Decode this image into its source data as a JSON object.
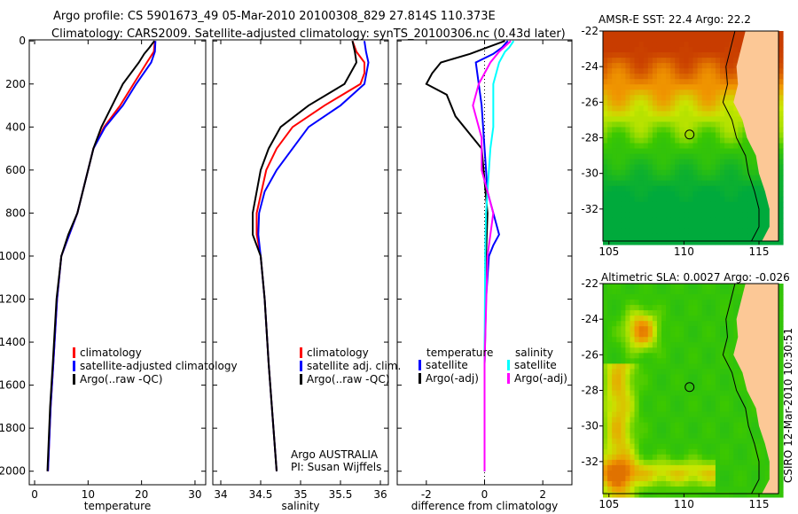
{
  "title": {
    "line1": "Argo profile: CS 5901673_49 05-Mar-2010 20100308_829 27.814S 110.373E",
    "line2": "Climatology: CARS2009. Satellite-adjusted climatology: synTS_20100306.nc (0.43d later)"
  },
  "credit": "CSIRO 12-Mar-2010 10:30:51",
  "colors": {
    "climatology": "#ff0000",
    "satellite": "#0000ff",
    "argo": "#000000",
    "sal_satellite": "#00ffff",
    "sal_argo": "#ff00ff",
    "land": "#fcc896"
  },
  "chart_data": [
    {
      "type": "line",
      "xlabel": "temperature",
      "xlim": [
        -1,
        32
      ],
      "ylim": [
        2063,
        -5
      ],
      "xticks": [
        "0",
        "10",
        "20",
        "30"
      ],
      "xtick_values": [
        0,
        10,
        20,
        30
      ],
      "yticks": [
        "0",
        "200",
        "400",
        "600",
        "800",
        "1000",
        "1200",
        "1400",
        "1600",
        "1800",
        "2000"
      ],
      "ytick_values": [
        0,
        200,
        400,
        600,
        800,
        1000,
        1200,
        1400,
        1600,
        1800,
        2000
      ],
      "legend": [
        "climatology",
        "satellite-adjusted climatology",
        "Argo(..raw -QC)"
      ],
      "series": [
        {
          "name": "climatology",
          "color": "#ff0000",
          "depth": [
            0,
            50,
            100,
            200,
            300,
            400,
            500,
            600,
            800,
            900,
            1000,
            1200,
            1500,
            1700,
            2000
          ],
          "values": [
            22.5,
            22.3,
            21,
            18.5,
            16,
            13,
            11,
            10,
            8,
            6.5,
            5,
            4.2,
            3.5,
            3,
            2.5
          ]
        },
        {
          "name": "satellite-adjusted climatology",
          "color": "#0000ff",
          "depth": [
            0,
            50,
            100,
            200,
            300,
            400,
            500,
            600,
            800,
            900,
            1000,
            1200,
            1500,
            1700,
            2000
          ],
          "values": [
            22.6,
            22.5,
            21.8,
            19,
            16.5,
            13.2,
            11,
            10,
            8,
            6.5,
            5,
            4.2,
            3.5,
            3,
            2.5
          ]
        },
        {
          "name": "Argo(..raw -QC)",
          "color": "#000000",
          "depth": [
            0,
            30,
            60,
            100,
            200,
            300,
            400,
            500,
            600,
            800,
            900,
            1000,
            1200,
            1500,
            1700,
            2000
          ],
          "values": [
            22.4,
            21.5,
            20.5,
            19.5,
            16.5,
            14.5,
            12.5,
            11,
            10,
            8,
            6.3,
            5,
            4.1,
            3.4,
            2.9,
            2.4
          ]
        }
      ]
    },
    {
      "type": "line",
      "xlabel": "salinity",
      "xlim": [
        33.9,
        36.1
      ],
      "ylim": [
        2063,
        -5
      ],
      "xticks": [
        "34",
        "34.5",
        "35",
        "35.5",
        "36"
      ],
      "xtick_values": [
        34,
        34.5,
        35,
        35.5,
        36
      ],
      "legend": [
        "climatology",
        "satellite adj. clim.",
        "Argo(..raw -QC)"
      ],
      "annotation": [
        "Argo AUSTRALIA",
        "PI: Susan Wijffels"
      ],
      "series": [
        {
          "name": "climatology",
          "color": "#ff0000",
          "depth": [
            0,
            50,
            100,
            150,
            200,
            300,
            400,
            500,
            600,
            800,
            900,
            1000,
            1200,
            1500,
            2000
          ],
          "values": [
            35.65,
            35.7,
            35.8,
            35.8,
            35.75,
            35.3,
            34.9,
            34.7,
            34.57,
            34.45,
            34.45,
            34.5,
            34.55,
            34.6,
            34.7
          ]
        },
        {
          "name": "satellite adj. clim.",
          "color": "#0000ff",
          "depth": [
            0,
            50,
            100,
            200,
            300,
            400,
            500,
            600,
            700,
            800,
            900,
            1000,
            1200,
            1500,
            2000
          ],
          "values": [
            35.8,
            35.82,
            35.85,
            35.8,
            35.5,
            35.1,
            34.9,
            34.7,
            34.55,
            34.48,
            34.47,
            34.5,
            34.55,
            34.6,
            34.7
          ]
        },
        {
          "name": "Argo(..raw -QC)",
          "color": "#000000",
          "depth": [
            0,
            50,
            100,
            200,
            300,
            400,
            500,
            600,
            800,
            900,
            1000,
            1200,
            1500,
            2000
          ],
          "values": [
            35.65,
            35.68,
            35.7,
            35.55,
            35.1,
            34.75,
            34.6,
            34.5,
            34.4,
            34.4,
            34.5,
            34.55,
            34.6,
            34.7
          ]
        }
      ]
    },
    {
      "type": "line",
      "xlabel": "difference from climatology",
      "xlim": [
        -3,
        3
      ],
      "ylim": [
        2063,
        -5
      ],
      "xticks": [
        "-2",
        "0",
        "2"
      ],
      "xtick_values": [
        -2,
        0,
        2
      ],
      "legend_headers": [
        "temperature",
        "salinity"
      ],
      "legend": [
        "satellite",
        "Argo(-adj)",
        "satellite",
        "Argo(-adj)"
      ],
      "series": [
        {
          "name": "temperature satellite",
          "color": "#0000ff",
          "depth": [
            0,
            30,
            60,
            100,
            200,
            300,
            500,
            700,
            850,
            900,
            950,
            1000,
            1200,
            1500,
            2000
          ],
          "values": [
            0.8,
            0.6,
            0.3,
            -0.3,
            -0.2,
            -0.1,
            0,
            0.1,
            0.4,
            0.5,
            0.3,
            0.15,
            0.05,
            0,
            0
          ]
        },
        {
          "name": "temperature Argo(-adj)",
          "color": "#000000",
          "depth": [
            0,
            30,
            60,
            100,
            150,
            200,
            250,
            350,
            450,
            500,
            800,
            1000,
            1500,
            2000
          ],
          "values": [
            0.7,
            0.1,
            -0.5,
            -1.5,
            -1.8,
            -2.0,
            -1.3,
            -1,
            -0.4,
            -0.1,
            0.1,
            0.05,
            0,
            0
          ]
        },
        {
          "name": "salinity satellite",
          "color": "#00ffff",
          "depth": [
            0,
            30,
            50,
            100,
            200,
            400,
            500,
            800,
            1000,
            1500,
            2000
          ],
          "values": [
            1,
            0.85,
            0.7,
            0.5,
            0.3,
            0.3,
            0.2,
            0.05,
            0.02,
            0,
            0
          ]
        },
        {
          "name": "salinity Argo(-adj)",
          "color": "#ff00ff",
          "depth": [
            0,
            50,
            100,
            200,
            300,
            450,
            600,
            700,
            800,
            900,
            1000,
            1500,
            2000
          ],
          "values": [
            0.9,
            0.5,
            0.2,
            -0.2,
            -0.4,
            -0.1,
            -0.1,
            0.1,
            0.3,
            0.2,
            0.1,
            0,
            0
          ]
        }
      ]
    },
    {
      "type": "heatmap",
      "title": "AMSR-E SST: 22.4 Argo: 22.2",
      "xlim": [
        104.6,
        116.3
      ],
      "ylim": [
        -33.8,
        -22
      ],
      "xticks": [
        "105",
        "110",
        "115"
      ],
      "xtick_values": [
        105,
        110,
        115
      ],
      "yticks": [
        "-22",
        "-24",
        "-26",
        "-28",
        "-30",
        "-32"
      ],
      "ytick_values": [
        -22,
        -24,
        -26,
        -28,
        -30,
        -32
      ],
      "marker": {
        "lon": 110.373,
        "lat": -27.814
      }
    },
    {
      "type": "heatmap",
      "title": "Altimetric SLA: 0.0027 Argo: -0.026",
      "xlim": [
        104.6,
        116.3
      ],
      "ylim": [
        -33.8,
        -22
      ],
      "xticks": [
        "105",
        "110",
        "115"
      ],
      "xtick_values": [
        105,
        110,
        115
      ],
      "yticks": [
        "-22",
        "-24",
        "-26",
        "-28",
        "-30",
        "-32"
      ],
      "ytick_values": [
        -22,
        -24,
        -26,
        -28,
        -30,
        -32
      ],
      "marker": {
        "lon": 110.373,
        "lat": -27.814
      }
    }
  ]
}
